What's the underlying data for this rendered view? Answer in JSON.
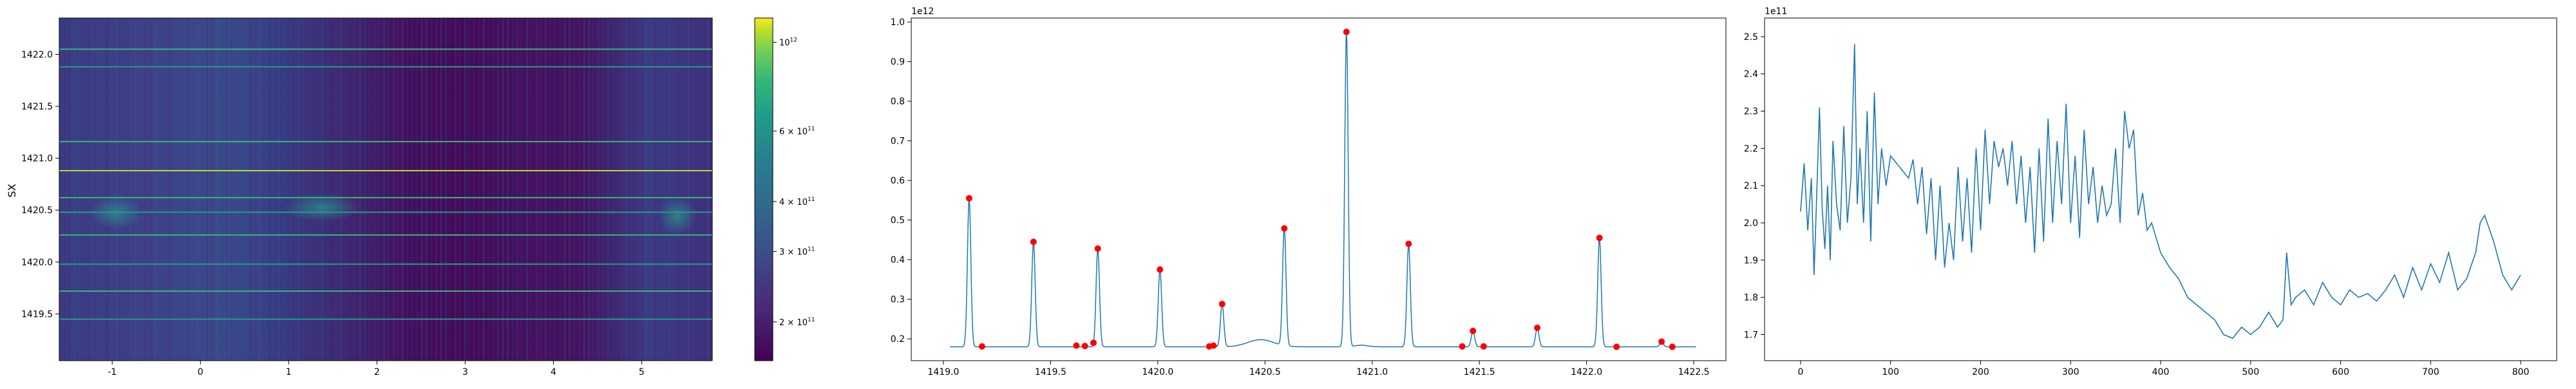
{
  "chart_data": [
    {
      "type": "heatmap",
      "ylabel": "SX",
      "xlim": [
        -1.6,
        5.8
      ],
      "ylim": [
        1419.05,
        1422.35
      ],
      "x_ticks": [
        "-1",
        "0",
        "1",
        "2",
        "3",
        "4",
        "5"
      ],
      "x_tick_values": [
        -1,
        0,
        1,
        2,
        3,
        4,
        5
      ],
      "y_ticks": [
        "1419.5",
        "1420.0",
        "1420.5",
        "1421.0",
        "1421.5",
        "1422.0"
      ],
      "y_tick_values": [
        1419.5,
        1420.0,
        1420.5,
        1421.0,
        1421.5,
        1422.0
      ],
      "horizontal_lines_y": [
        1419.45,
        1419.72,
        1419.98,
        1420.26,
        1420.48,
        1420.62,
        1420.88,
        1421.16,
        1421.88,
        1422.05
      ],
      "colorbar": {
        "scale": "log",
        "colormap": "viridis",
        "range": [
          160000000000.0,
          1150000000000.0
        ],
        "ticks": [
          {
            "value": 200000000000.0,
            "mantissa": "2 × 10",
            "exp": "11"
          },
          {
            "value": 300000000000.0,
            "mantissa": "3 × 10",
            "exp": "11"
          },
          {
            "value": 400000000000.0,
            "mantissa": "4 × 10",
            "exp": "11"
          },
          {
            "value": 600000000000.0,
            "mantissa": "6 × 10",
            "exp": "11"
          },
          {
            "value": 1000000000000.0,
            "mantissa": "10",
            "exp": "12"
          }
        ]
      }
    },
    {
      "type": "line",
      "offset_label": "1e12",
      "xlim": [
        1418.85,
        1422.65
      ],
      "ylim": [
        0.145,
        1.01
      ],
      "x_ticks": [
        "1419.0",
        "1419.5",
        "1420.0",
        "1420.5",
        "1421.0",
        "1421.5",
        "1422.0",
        "1422.5"
      ],
      "x_tick_values": [
        1419.0,
        1419.5,
        1420.0,
        1420.5,
        1421.0,
        1421.5,
        1422.0,
        1422.5
      ],
      "y_ticks": [
        "0.2",
        "0.3",
        "0.4",
        "0.5",
        "0.6",
        "0.7",
        "0.8",
        "0.9",
        "1.0"
      ],
      "y_tick_values": [
        0.2,
        0.3,
        0.4,
        0.5,
        0.6,
        0.7,
        0.8,
        0.9,
        1.0
      ],
      "line_color": "#1f77b4",
      "marker_color": "#ff0000",
      "baseline": 0.18,
      "x_range": [
        1419.03,
        1422.51
      ],
      "peaks": [
        {
          "x": 1419.12,
          "y": 0.555
        },
        {
          "x": 1419.42,
          "y": 0.445
        },
        {
          "x": 1419.72,
          "y": 0.428
        },
        {
          "x": 1420.01,
          "y": 0.375
        },
        {
          "x": 1420.3,
          "y": 0.288
        },
        {
          "x": 1420.59,
          "y": 0.479
        },
        {
          "x": 1420.88,
          "y": 0.975
        },
        {
          "x": 1421.17,
          "y": 0.44
        },
        {
          "x": 1421.47,
          "y": 0.22
        },
        {
          "x": 1421.77,
          "y": 0.228
        },
        {
          "x": 1422.06,
          "y": 0.455
        },
        {
          "x": 1422.35,
          "y": 0.193
        }
      ],
      "markers": [
        {
          "x": 1419.12,
          "y": 0.555
        },
        {
          "x": 1419.18,
          "y": 0.181
        },
        {
          "x": 1419.42,
          "y": 0.445
        },
        {
          "x": 1419.62,
          "y": 0.183
        },
        {
          "x": 1419.66,
          "y": 0.182
        },
        {
          "x": 1419.7,
          "y": 0.19
        },
        {
          "x": 1419.72,
          "y": 0.428
        },
        {
          "x": 1420.01,
          "y": 0.375
        },
        {
          "x": 1420.24,
          "y": 0.181
        },
        {
          "x": 1420.26,
          "y": 0.183
        },
        {
          "x": 1420.3,
          "y": 0.288
        },
        {
          "x": 1420.59,
          "y": 0.479
        },
        {
          "x": 1420.88,
          "y": 0.975
        },
        {
          "x": 1421.17,
          "y": 0.44
        },
        {
          "x": 1421.42,
          "y": 0.181
        },
        {
          "x": 1421.47,
          "y": 0.22
        },
        {
          "x": 1421.52,
          "y": 0.181
        },
        {
          "x": 1421.77,
          "y": 0.228
        },
        {
          "x": 1422.06,
          "y": 0.455
        },
        {
          "x": 1422.14,
          "y": 0.18
        },
        {
          "x": 1422.35,
          "y": 0.193
        },
        {
          "x": 1422.4,
          "y": 0.18
        }
      ]
    },
    {
      "type": "line",
      "offset_label": "1e11",
      "xlim": [
        -40,
        840
      ],
      "ylim": [
        1.63,
        2.55
      ],
      "x_ticks": [
        "0",
        "100",
        "200",
        "300",
        "400",
        "500",
        "600",
        "700",
        "800"
      ],
      "x_tick_values": [
        0,
        100,
        200,
        300,
        400,
        500,
        600,
        700,
        800
      ],
      "y_ticks": [
        "1.7",
        "1.8",
        "1.9",
        "2.0",
        "2.1",
        "2.2",
        "2.3",
        "2.4",
        "2.5"
      ],
      "y_tick_values": [
        1.7,
        1.8,
        1.9,
        2.0,
        2.1,
        2.2,
        2.3,
        2.4,
        2.5
      ],
      "line_color": "#1f77b4",
      "x": [
        0,
        4,
        8,
        12,
        15,
        18,
        21,
        24,
        27,
        30,
        33,
        36,
        40,
        44,
        48,
        52,
        56,
        60,
        63,
        66,
        70,
        74,
        78,
        82,
        86,
        90,
        95,
        100,
        110,
        120,
        125,
        130,
        135,
        140,
        145,
        150,
        155,
        160,
        165,
        170,
        175,
        180,
        185,
        190,
        195,
        200,
        205,
        210,
        215,
        220,
        225,
        230,
        235,
        240,
        245,
        250,
        255,
        260,
        265,
        270,
        275,
        280,
        285,
        290,
        295,
        300,
        305,
        310,
        315,
        320,
        325,
        330,
        335,
        340,
        345,
        350,
        355,
        360,
        365,
        370,
        375,
        380,
        385,
        390,
        400,
        410,
        420,
        430,
        440,
        450,
        460,
        470,
        480,
        490,
        500,
        510,
        520,
        530,
        536,
        540,
        545,
        550,
        560,
        570,
        580,
        590,
        600,
        610,
        620,
        630,
        640,
        650,
        660,
        670,
        680,
        690,
        700,
        710,
        720,
        730,
        740,
        750,
        755,
        760,
        770,
        780,
        790,
        795,
        800
      ],
      "values": [
        2.03,
        2.16,
        1.98,
        2.12,
        1.86,
        2.08,
        2.31,
        2.04,
        1.93,
        2.1,
        1.9,
        2.22,
        2.05,
        1.98,
        2.26,
        2.0,
        2.12,
        2.48,
        2.05,
        2.2,
        2.0,
        2.3,
        1.95,
        2.35,
        2.05,
        2.2,
        2.1,
        2.18,
        2.15,
        2.12,
        2.17,
        2.05,
        2.15,
        1.97,
        2.12,
        1.9,
        2.1,
        1.88,
        2.0,
        1.9,
        2.15,
        1.95,
        2.12,
        1.92,
        2.2,
        1.98,
        2.25,
        2.05,
        2.22,
        2.15,
        2.2,
        2.1,
        2.22,
        2.05,
        2.18,
        2.0,
        2.15,
        1.92,
        2.2,
        1.95,
        2.28,
        2.0,
        2.22,
        2.05,
        2.32,
        2.0,
        2.18,
        1.96,
        2.25,
        2.05,
        2.15,
        2.0,
        2.1,
        2.02,
        2.05,
        2.2,
        2.0,
        2.3,
        2.2,
        2.25,
        2.02,
        2.08,
        1.98,
        2.0,
        1.92,
        1.88,
        1.85,
        1.8,
        1.78,
        1.76,
        1.74,
        1.7,
        1.69,
        1.72,
        1.7,
        1.72,
        1.76,
        1.72,
        1.74,
        1.92,
        1.78,
        1.8,
        1.82,
        1.78,
        1.84,
        1.8,
        1.78,
        1.82,
        1.8,
        1.81,
        1.79,
        1.82,
        1.86,
        1.8,
        1.88,
        1.82,
        1.89,
        1.84,
        1.92,
        1.82,
        1.85,
        1.92,
        2.0,
        2.02,
        1.95,
        1.86,
        1.82,
        1.84,
        1.86
      ]
    }
  ]
}
